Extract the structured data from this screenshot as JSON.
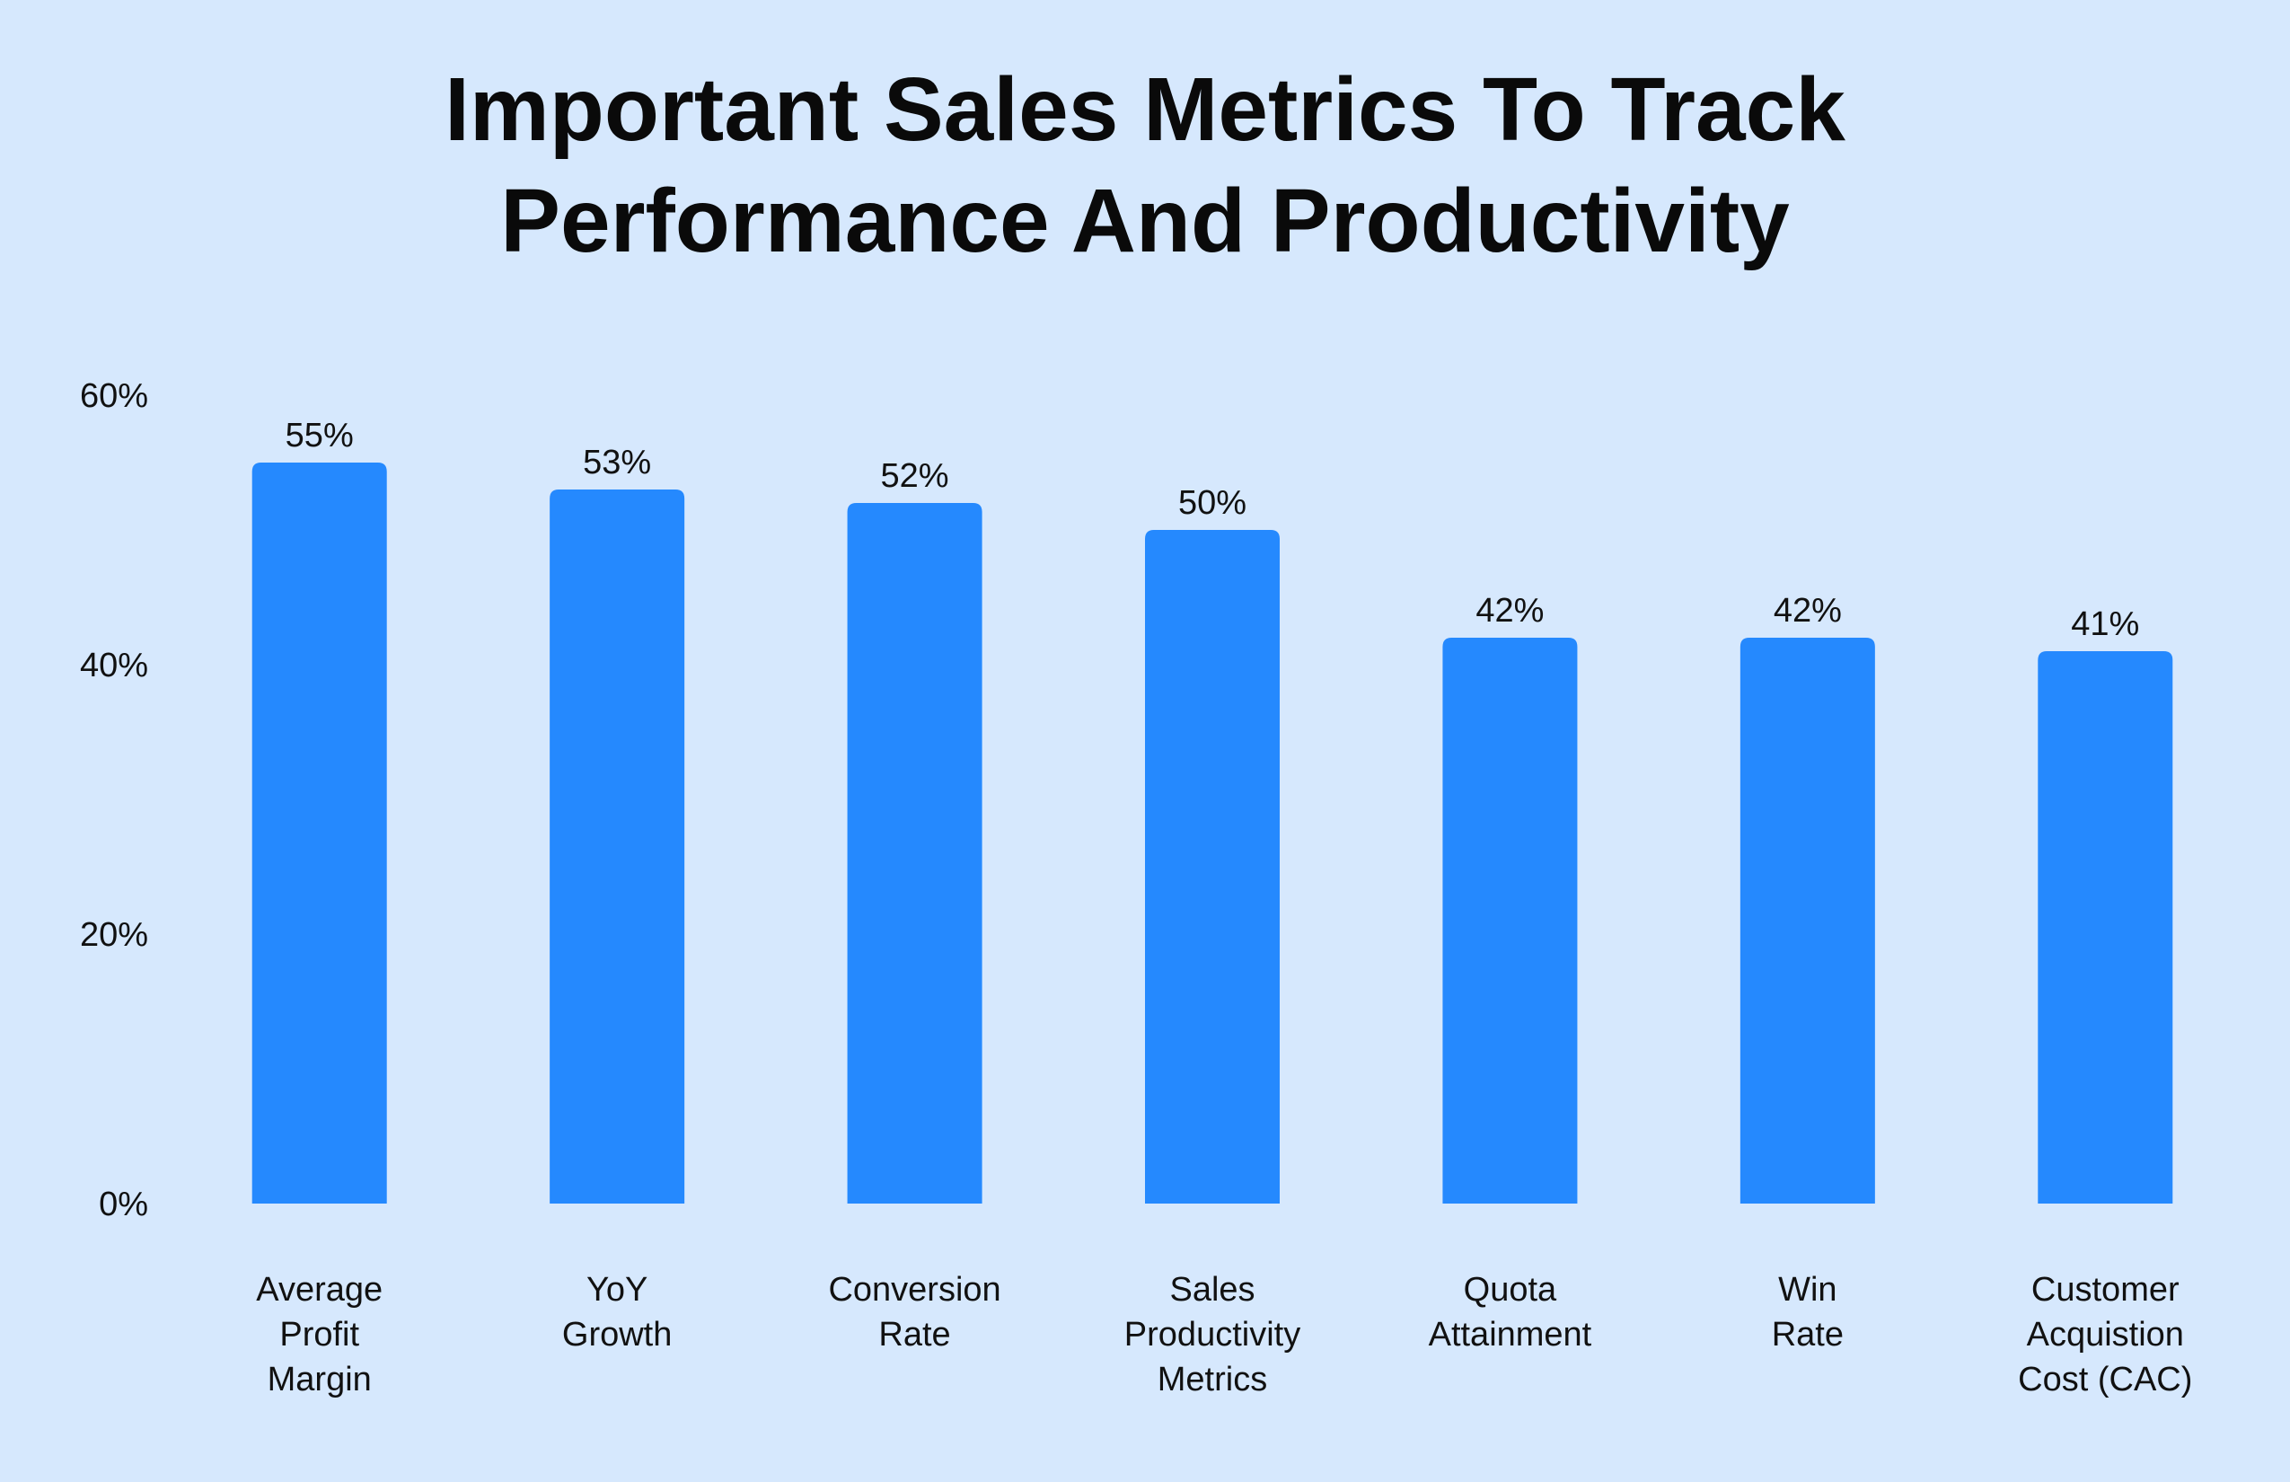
{
  "chart_data": {
    "type": "bar",
    "title_lines": [
      "Important Sales Metrics To Track",
      "Performance And Productivity"
    ],
    "categories": [
      [
        "Average",
        "Profit",
        "Margin"
      ],
      [
        "YoY",
        "Growth"
      ],
      [
        "Conversion",
        "Rate"
      ],
      [
        "Sales",
        "Productivity",
        "Metrics"
      ],
      [
        "Quota",
        "Attainment"
      ],
      [
        "Win",
        "Rate"
      ],
      [
        "Customer",
        "Acquistion",
        "Cost (CAC)"
      ]
    ],
    "values": [
      55,
      53,
      52,
      50,
      42,
      42,
      41
    ],
    "value_labels": [
      "55%",
      "53%",
      "52%",
      "50%",
      "42%",
      "42%",
      "41%"
    ],
    "ylim": [
      0,
      60
    ],
    "yticks": [
      0,
      20,
      40,
      60
    ],
    "ytick_labels": [
      "0%",
      "20%",
      "40%",
      "60%"
    ],
    "grid": false,
    "legend": "none",
    "colors": {
      "background": "#d6e8fd",
      "bar": "#2589fe",
      "text": "#111111"
    }
  }
}
